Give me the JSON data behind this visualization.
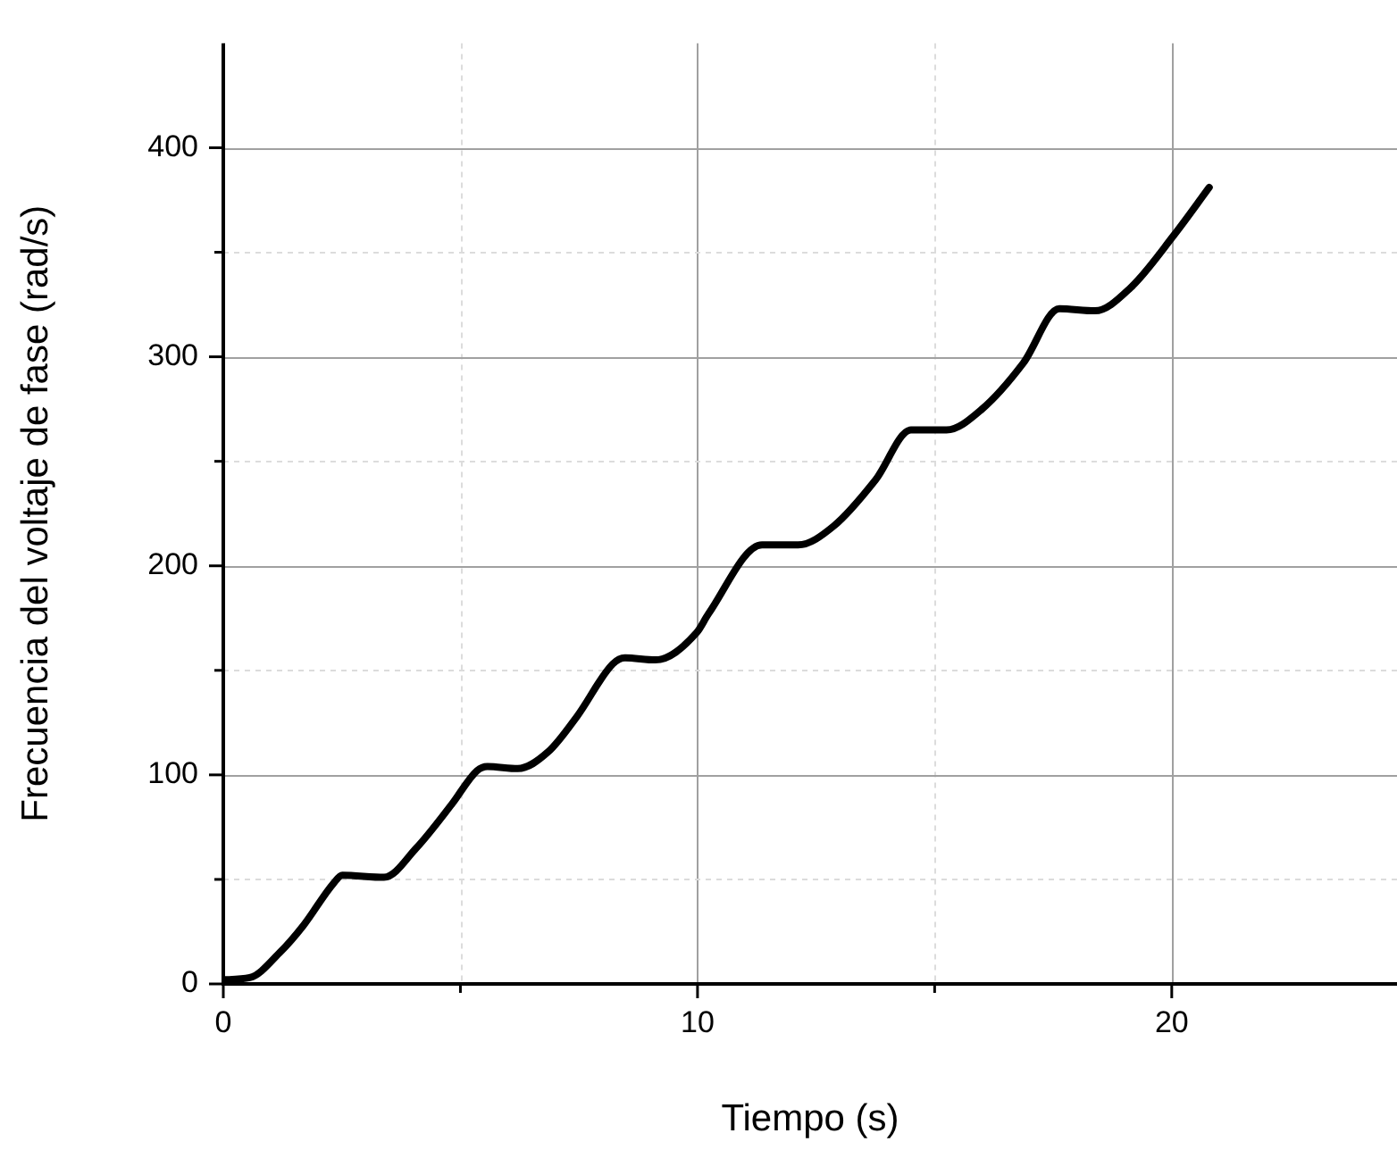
{
  "chart_data": {
    "type": "line",
    "xlabel": "Tiempo (s)",
    "ylabel": "Frecuencia del voltaje de fase (rad/s)",
    "xlim": [
      0,
      24.75
    ],
    "ylim": [
      0,
      450
    ],
    "xticks": [
      0,
      {
        "value": 5,
        "label": null
      },
      10,
      {
        "value": 15,
        "label": null
      },
      20
    ],
    "yticks": [
      0,
      {
        "value": 50,
        "label": null
      },
      100,
      {
        "value": 150,
        "label": null
      },
      200,
      {
        "value": 250,
        "label": null
      },
      300,
      {
        "value": 350,
        "label": null
      },
      400
    ],
    "grid": true,
    "marker": "none",
    "line_style": "solid",
    "series": [
      {
        "color": "#000000",
        "x": [
          0,
          0.56,
          1.19,
          1.69,
          2.32,
          2.51,
          3.39,
          4.07,
          4.82,
          5.35,
          5.57,
          6.21,
          6.85,
          7.46,
          8.21,
          8.47,
          9.11,
          9.98,
          10.23,
          11.36,
          12.12,
          12.87,
          13.75,
          14.5,
          15.25,
          16.0,
          16.87,
          17.63,
          18.38,
          19.13,
          20.04,
          20.79
        ],
        "values": [
          2,
          3,
          15,
          28,
          48,
          52,
          51,
          65,
          86,
          102,
          104,
          103,
          111,
          128,
          153,
          156,
          155,
          168,
          177,
          210,
          210,
          219,
          241,
          265,
          265,
          275,
          297,
          323,
          322,
          333,
          358,
          381
        ]
      }
    ]
  }
}
